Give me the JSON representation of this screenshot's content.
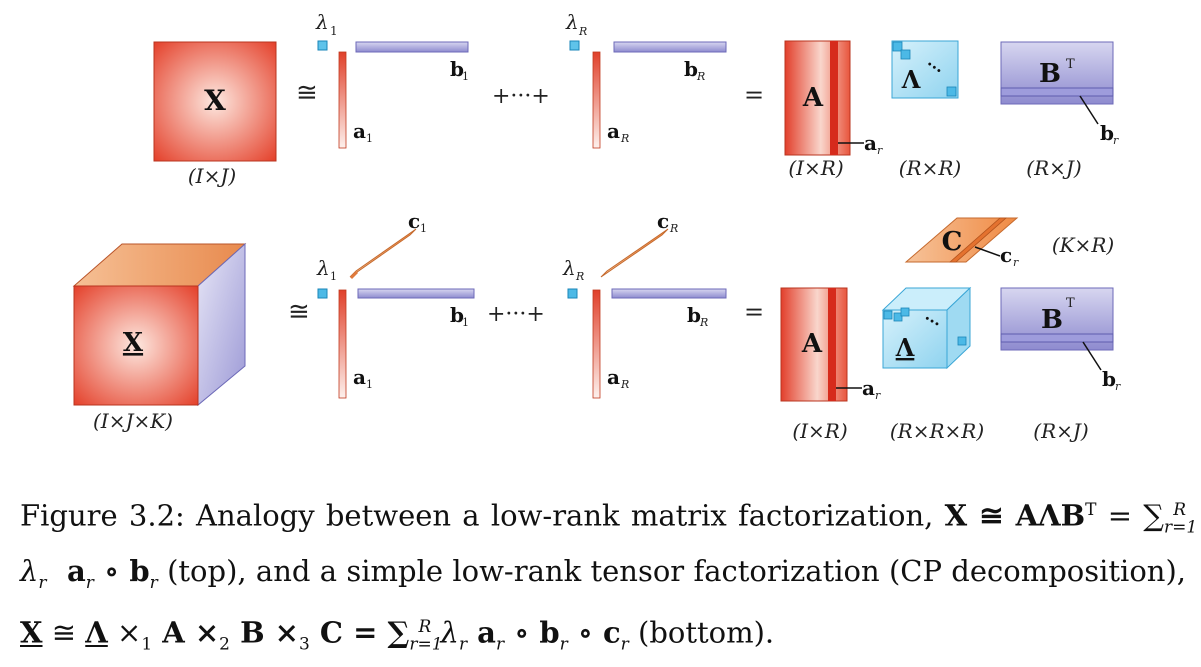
{
  "top": {
    "matrix_label": "X",
    "matrix_dims": "(I×J)",
    "approx_sym": "≅",
    "lambda_1": "λ",
    "lambda_1_sub": "1",
    "lambda_R": "λ",
    "lambda_R_sub": "R",
    "b_1": "b",
    "b_1_sub": "1",
    "a_1": "a",
    "a_1_sub": "1",
    "plus_dots": "+···+",
    "b_R": "b",
    "b_R_sub": "R",
    "a_R": "a",
    "a_R_sub": "R",
    "equals": "=",
    "A_label": "A",
    "a_r": "a",
    "a_r_sub": "r",
    "Lambda_label": "Λ",
    "Lambda_dots": "···",
    "B_label": "B",
    "B_sup": "T",
    "b_r": "b",
    "b_r_sub": "r",
    "dims_A": "(I×R)",
    "dims_Lambda": "(R×R)",
    "dims_B": "(R×J)"
  },
  "bottom": {
    "tensor_label": "X",
    "tensor_dims": "(I×J×K)",
    "approx_sym": "≅",
    "c_1": "c",
    "c_1_sub": "1",
    "lambda_1": "λ",
    "lambda_1_sub": "1",
    "b_1": "b",
    "b_1_sub": "1",
    "a_1": "a",
    "a_1_sub": "1",
    "plus_dots": "+···+",
    "c_R": "c",
    "c_R_sub": "R",
    "lambda_R": "λ",
    "lambda_R_sub": "R",
    "b_R": "b",
    "b_R_sub": "R",
    "a_R": "a",
    "a_R_sub": "R",
    "equals": "=",
    "C_label": "C",
    "c_r": "c",
    "c_r_sub": "r",
    "dims_C": "(K×R)",
    "A_label": "A",
    "a_r": "a",
    "a_r_sub": "r",
    "Lambda_label": "Λ",
    "Lambda_dots": "···",
    "B_label": "B",
    "B_sup": "T",
    "b_r": "b",
    "b_r_sub": "r",
    "dims_A": "(I×R)",
    "dims_Lambda": "(R×R×R)",
    "dims_B": "(R×J)"
  },
  "caption": {
    "prefix": "Figure 3.2: Analogy between a low-rank matrix factorization, ",
    "eq1": "X ≅ AΛB",
    "eq1_sup": "T",
    "eq1_rest": " = ∑",
    "sum_lim": "r=1",
    "sum_up": "R",
    "term1": " λ",
    "term1_sub": "r",
    "term1_b": "  a",
    "term1_b_sub": "r",
    "term1_c": " ∘ b",
    "term1_c_sub": "r",
    "top_word": " (top), and a simple low-rank tensor factorization (CP decomposition), ",
    "eq2_X": "X",
    "eq2_mid": " ≅ ",
    "eq2_L": "Λ",
    "eq2_rest": " ×",
    "n1": "1",
    "eq2_A": " A ×",
    "n2": "2",
    "eq2_B": " B ×",
    "n3": "3",
    "eq2_C": " C = ∑",
    "sum2_lim": "r=1",
    "sum2_up": "R",
    "term2": " λ",
    "term2_sub": "r",
    "term2_a": " a",
    "term2_a_sub": "r",
    "term2_b": " ∘ b",
    "term2_b_sub": "r",
    "term2_c": " ∘ c",
    "term2_c_sub": "r",
    "bottom_word": " (bottom)."
  },
  "colors": {
    "red_dark": "#e0402a",
    "red_light": "#fbe3dc",
    "purple": "#9d9bd8",
    "cyan": "#aee2f5",
    "orange": "#f4a66b"
  }
}
